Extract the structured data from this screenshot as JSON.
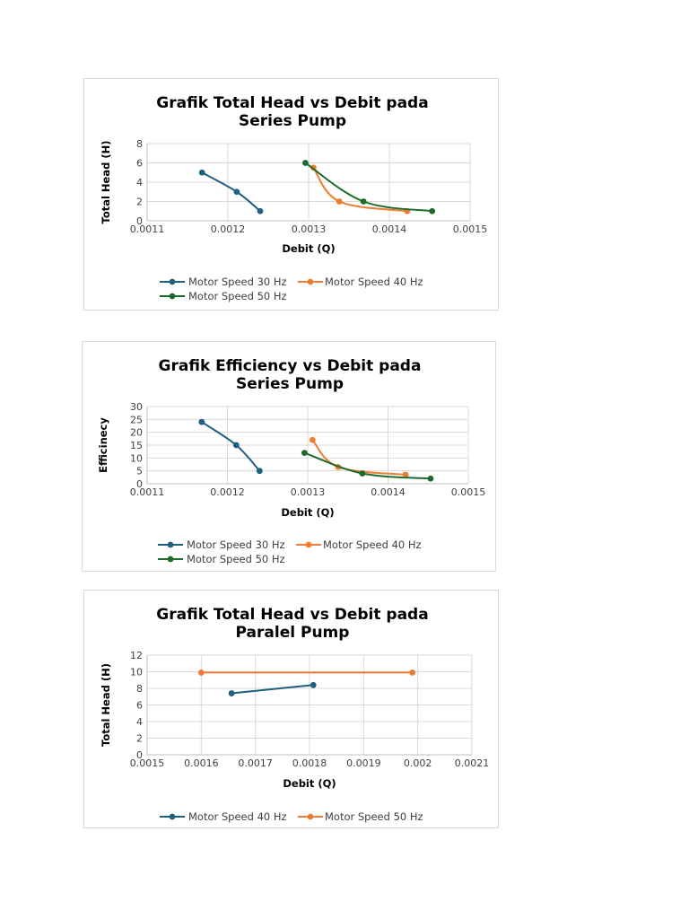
{
  "chart_data": [
    {
      "type": "scatter",
      "title": [
        "Grafik Total Head vs Debit pada",
        "Series Pump"
      ],
      "xlabel": "Debit (Q)",
      "ylabel": "Total Head (H)",
      "xlim": [
        0.0011,
        0.0015
      ],
      "ylim": [
        0,
        8
      ],
      "x_ticks": [
        "0.0011",
        "0.0012",
        "0.0013",
        "0.0014",
        "0.0015"
      ],
      "y_ticks": [
        "0",
        "2",
        "4",
        "6",
        "8"
      ],
      "grid": true,
      "legend_position": "bottom",
      "series": [
        {
          "name": "Motor Speed 30 Hz",
          "color": "#1f5f80",
          "points": [
            [
              0.001168,
              5
            ],
            [
              0.001211,
              3
            ],
            [
              0.00124,
              1
            ]
          ]
        },
        {
          "name": "Motor Speed 40 Hz",
          "color": "#ef7d31",
          "points": [
            [
              0.001306,
              5.5
            ],
            [
              0.001338,
              2
            ],
            [
              0.001422,
              1
            ]
          ]
        },
        {
          "name": "Motor Speed 50 Hz",
          "color": "#1c6b2a",
          "points": [
            [
              0.001296,
              6
            ],
            [
              0.001368,
              2
            ],
            [
              0.001453,
              1
            ]
          ]
        }
      ]
    },
    {
      "type": "scatter",
      "title": [
        "Grafik Efficiency vs Debit pada",
        "Series Pump"
      ],
      "xlabel": "Debit (Q)",
      "ylabel": "Efficinecy",
      "xlim": [
        0.0011,
        0.0015
      ],
      "ylim": [
        0,
        30
      ],
      "x_ticks": [
        "0.0011",
        "0.0012",
        "0.0013",
        "0.0014",
        "0.0015"
      ],
      "y_ticks": [
        "0",
        "5",
        "10",
        "15",
        "20",
        "25",
        "30"
      ],
      "grid": true,
      "legend_position": "bottom",
      "series": [
        {
          "name": "Motor Speed 30 Hz",
          "color": "#1f5f80",
          "points": [
            [
              0.001168,
              24
            ],
            [
              0.001211,
              15
            ],
            [
              0.00124,
              5
            ]
          ]
        },
        {
          "name": "Motor Speed 40 Hz",
          "color": "#ef7d31",
          "points": [
            [
              0.001306,
              17
            ],
            [
              0.001338,
              6.5
            ],
            [
              0.001422,
              3.5
            ]
          ]
        },
        {
          "name": "Motor Speed 50 Hz",
          "color": "#1c6b2a",
          "points": [
            [
              0.001296,
              12
            ],
            [
              0.001368,
              4
            ],
            [
              0.001453,
              2
            ]
          ]
        }
      ]
    },
    {
      "type": "scatter",
      "title": [
        "Grafik Total Head vs Debit pada",
        "Paralel Pump"
      ],
      "xlabel": "Debit (Q)",
      "ylabel": "Total Head (H)",
      "xlim": [
        0.0015,
        0.0021
      ],
      "ylim": [
        0,
        12
      ],
      "x_ticks": [
        "0.0015",
        "0.0016",
        "0.0017",
        "0.0018",
        "0.0019",
        "0.002",
        "0.0021"
      ],
      "y_ticks": [
        "0",
        "2",
        "4",
        "6",
        "8",
        "10",
        "12"
      ],
      "grid": true,
      "legend_position": "bottom",
      "series": [
        {
          "name": "Motor Speed 40 Hz",
          "color": "#1f5f80",
          "points": [
            [
              0.001656,
              7.4
            ],
            [
              0.001807,
              8.4
            ]
          ]
        },
        {
          "name": "Motor Speed 50 Hz",
          "color": "#ef7d31",
          "points": [
            [
              0.0016,
              9.9
            ],
            [
              0.00199,
              9.9
            ]
          ]
        }
      ]
    }
  ]
}
